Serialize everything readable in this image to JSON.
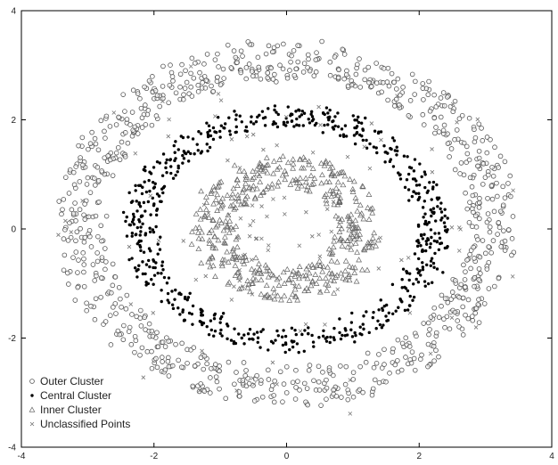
{
  "chart_data": {
    "type": "scatter",
    "title": "",
    "xlabel": "",
    "ylabel": "",
    "xlim": [
      -4,
      4
    ],
    "ylim": [
      -4,
      4
    ],
    "x_ticks": [
      -4,
      -2,
      0,
      2,
      4
    ],
    "y_ticks": [
      4,
      2,
      0,
      -2,
      -4
    ],
    "x_tick_labels": [
      "-4",
      "-2",
      "0",
      "2",
      "4"
    ],
    "y_tick_labels": [
      "4",
      "2",
      "0",
      "-2",
      "-4"
    ],
    "grid": false,
    "legend_position": "bottom-left",
    "series": [
      {
        "name": "Outer Cluster",
        "marker": "open-circle",
        "color": "#555555",
        "shape": "ring",
        "center": [
          0,
          0.1
        ],
        "rx_range": [
          2.75,
          3.45
        ],
        "ry_range": [
          2.65,
          3.35
        ],
        "count": 900
      },
      {
        "name": "Central Cluster",
        "marker": "filled-dot",
        "color": "#000000",
        "shape": "ring",
        "center": [
          0,
          0
        ],
        "rx_range": [
          1.95,
          2.45
        ],
        "ry_range": [
          1.85,
          2.25
        ],
        "count": 650
      },
      {
        "name": "Inner Cluster",
        "marker": "open-triangle",
        "color": "#666666",
        "shape": "ring",
        "center": [
          0,
          0
        ],
        "rx_range": [
          0.75,
          1.45
        ],
        "ry_range": [
          0.75,
          1.35
        ],
        "count": 450
      },
      {
        "name": "Unclassified Points",
        "marker": "small-star",
        "color": "#777777",
        "shape": "scatter",
        "center": [
          0,
          0
        ],
        "rx_range": [
          0.3,
          3.6
        ],
        "ry_range": [
          0.3,
          3.6
        ],
        "count": 120
      }
    ]
  }
}
